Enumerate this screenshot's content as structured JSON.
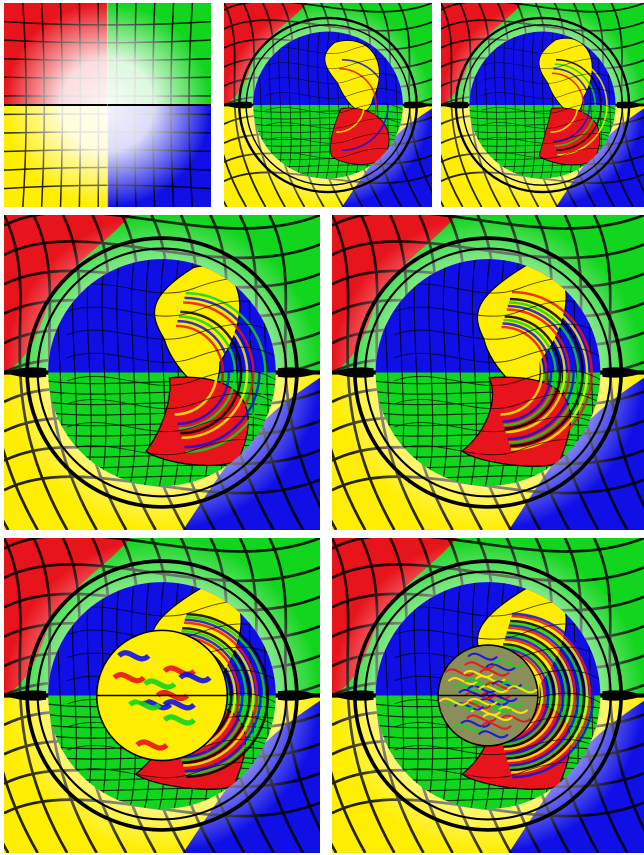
{
  "colors": {
    "red": "#e8141c",
    "green": "#12d51e",
    "yellow": "#ffee00",
    "blue": "#1010e6",
    "white": "#ffffff",
    "black": "#000000"
  },
  "panels": [
    {
      "name": "panel-initial-grid"
    },
    {
      "name": "panel-early-mixing"
    },
    {
      "name": "panel-stretching"
    },
    {
      "name": "panel-folding"
    },
    {
      "name": "panel-deep-folding"
    },
    {
      "name": "panel-chaotic-core"
    },
    {
      "name": "panel-fully-mixed-core"
    }
  ]
}
